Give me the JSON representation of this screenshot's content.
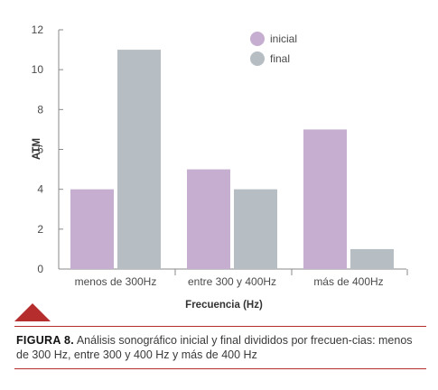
{
  "colors": {
    "inicial": "#c5aed0",
    "final": "#b6bec4",
    "axis": "#8a8a8a",
    "accent": "#b52d2d"
  },
  "chart_data": {
    "type": "bar",
    "categories": [
      "menos de 300Hz",
      "entre 300 y 400Hz",
      "más de 400Hz"
    ],
    "series": [
      {
        "name": "inicial",
        "values": [
          4,
          5,
          7
        ]
      },
      {
        "name": "final",
        "values": [
          11,
          4,
          1
        ]
      }
    ],
    "yticks": [
      "0",
      "2",
      "4",
      "6",
      "8",
      "10",
      "12"
    ],
    "ylim": [
      0,
      12
    ],
    "xlabel": "Frecuencia (Hz)",
    "ylabel": "ATM",
    "title": "",
    "grid": false,
    "legend_position": "top-right"
  },
  "caption": {
    "label": "FIGURA 8.",
    "text": " Análisis sonográfico inicial y final divididos por frecuen-cias: menos de 300 Hz, entre 300 y 400 Hz y más de 400 Hz"
  }
}
